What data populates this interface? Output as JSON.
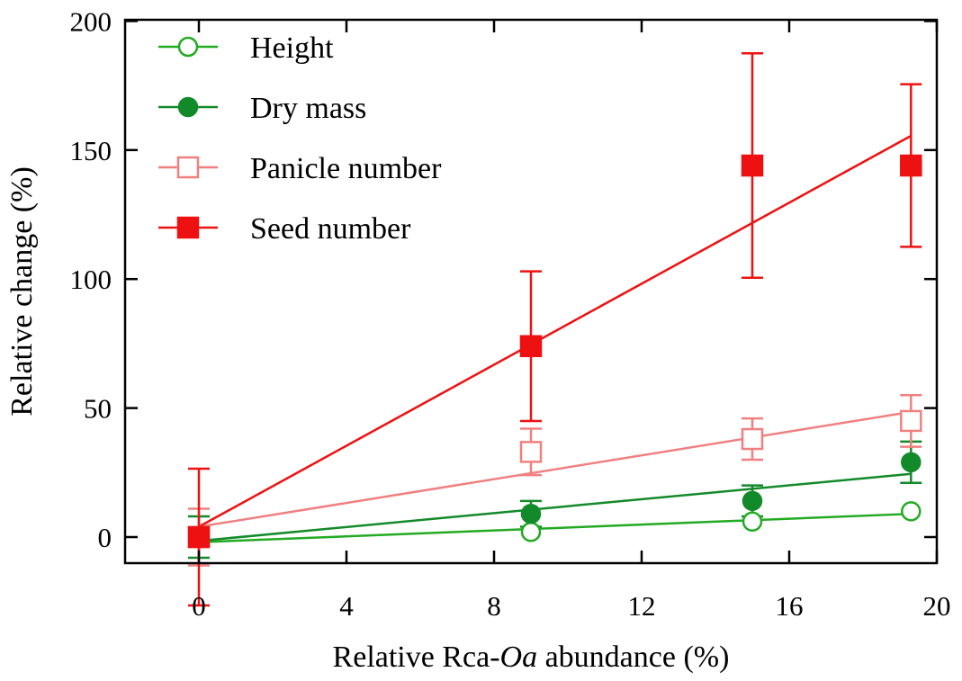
{
  "chart_data": {
    "type": "scatter",
    "title": "",
    "xlabel_parts": [
      {
        "text": "Relative Rca-",
        "italic": false
      },
      {
        "text": "Oa",
        "italic": true
      },
      {
        "text": " abundance (%)",
        "italic": false
      }
    ],
    "ylabel": "Relative change (%)",
    "xlim": [
      -2,
      20
    ],
    "ylim": [
      -10,
      200
    ],
    "xticks": [
      0,
      4,
      8,
      12,
      16,
      20
    ],
    "yticks": [
      0,
      50,
      100,
      150,
      200
    ],
    "legend_position": "top-left",
    "series": [
      {
        "name": "Height",
        "marker": "circle",
        "filled": false,
        "color": "#22aa22",
        "x": [
          0,
          9,
          15,
          19.3
        ],
        "y": [
          0,
          2,
          6,
          10
        ],
        "err": [
          0,
          0,
          0,
          0
        ],
        "fit": {
          "x": [
            0,
            19.3
          ],
          "y": [
            -2,
            9
          ]
        }
      },
      {
        "name": "Dry mass",
        "marker": "circle",
        "filled": true,
        "color": "#138a2a",
        "x": [
          0,
          9,
          15,
          19.3
        ],
        "y": [
          0,
          9,
          14,
          29
        ],
        "err": [
          8,
          5,
          6,
          8
        ],
        "fit": {
          "x": [
            0,
            19.3
          ],
          "y": [
            -1.5,
            24.5
          ]
        }
      },
      {
        "name": "Panicle number",
        "marker": "square",
        "filled": false,
        "color": "#f08080",
        "x": [
          0,
          9,
          15,
          19.3
        ],
        "y": [
          0,
          33,
          38,
          45
        ],
        "err": [
          11,
          9,
          8,
          10
        ],
        "fit": {
          "x": [
            0,
            19.3
          ],
          "y": [
            4,
            48.5
          ]
        }
      },
      {
        "name": "Seed number",
        "marker": "square",
        "filled": true,
        "color": "#ee1111",
        "x": [
          0,
          9,
          15,
          19.3
        ],
        "y": [
          0,
          74,
          144,
          144
        ],
        "err": [
          26.5,
          29,
          43.5,
          31.5
        ],
        "fit": {
          "x": [
            0,
            19.3
          ],
          "y": [
            4,
            155.5
          ]
        }
      }
    ]
  }
}
